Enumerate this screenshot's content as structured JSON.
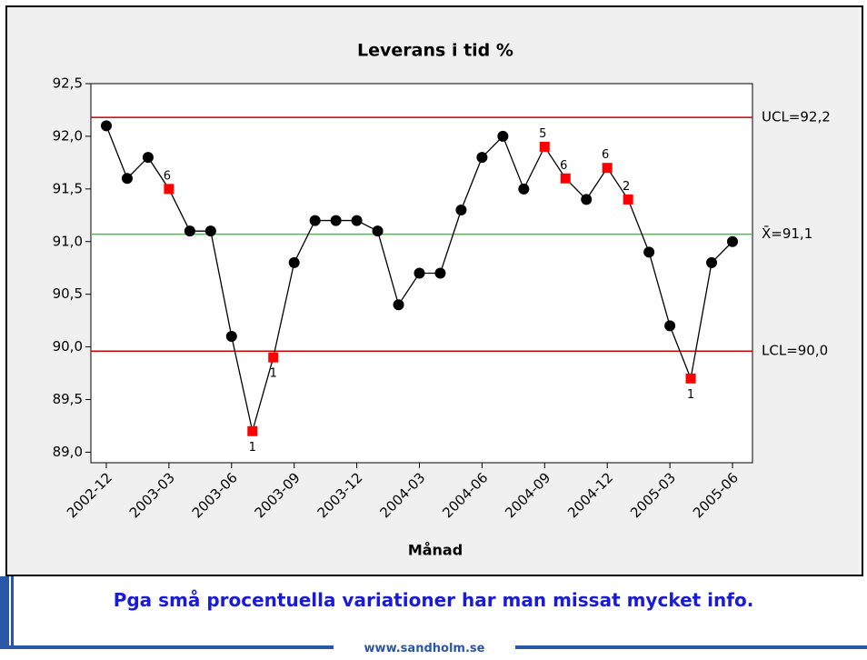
{
  "chart_data": {
    "type": "line",
    "title": "Leverans i tid %",
    "x_label": "Månad",
    "categories": [
      "2002-12",
      null,
      null,
      "2003-03",
      null,
      null,
      "2003-06",
      null,
      null,
      "2003-09",
      null,
      null,
      "2003-12",
      null,
      null,
      "2004-03",
      null,
      null,
      "2004-06",
      null,
      null,
      "2004-09",
      null,
      null,
      "2004-12",
      null,
      null,
      "2005-03",
      null,
      null,
      "2005-06"
    ],
    "series": [
      {
        "name": "Leverans i tid %",
        "color": "#000000",
        "flag_color": "#ff0000",
        "values": [
          92.1,
          91.6,
          91.8,
          91.5,
          91.1,
          91.1,
          90.1,
          89.2,
          89.9,
          90.8,
          91.2,
          91.2,
          91.2,
          91.1,
          90.4,
          90.7,
          90.7,
          91.3,
          91.8,
          92.0,
          91.5,
          91.9,
          91.6,
          91.4,
          91.7,
          91.4,
          90.9,
          90.2,
          89.7,
          90.8,
          91.0
        ],
        "flag_labels": [
          null,
          null,
          null,
          "6",
          null,
          null,
          null,
          "1",
          "1",
          null,
          null,
          null,
          null,
          null,
          null,
          null,
          null,
          null,
          null,
          null,
          null,
          "5",
          "6",
          null,
          "6",
          "2",
          null,
          null,
          "1",
          null,
          null
        ]
      }
    ],
    "control_lines": [
      {
        "value": 92.18,
        "label": "UCL=92,2",
        "color": "#cc0000"
      },
      {
        "value": 91.07,
        "label": "X̄=91,1",
        "color": "#33cc33"
      },
      {
        "value": 89.96,
        "label": "LCL=90,0",
        "color": "#cc0000"
      }
    ],
    "ylim": [
      88.9,
      92.5
    ],
    "yticks": [
      {
        "value": 89.0,
        "label": "89,0"
      },
      {
        "value": 89.5,
        "label": "89,5"
      },
      {
        "value": 90.0,
        "label": "90,0"
      },
      {
        "value": 90.5,
        "label": "90,5"
      },
      {
        "value": 91.0,
        "label": "91,0"
      },
      {
        "value": 91.5,
        "label": "91,5"
      },
      {
        "value": 92.0,
        "label": "92,0"
      },
      {
        "value": 92.5,
        "label": "92,5"
      }
    ]
  },
  "caption": "Pga små procentuella variationer har man missat mycket info.",
  "footer": "www.sandholm.se"
}
